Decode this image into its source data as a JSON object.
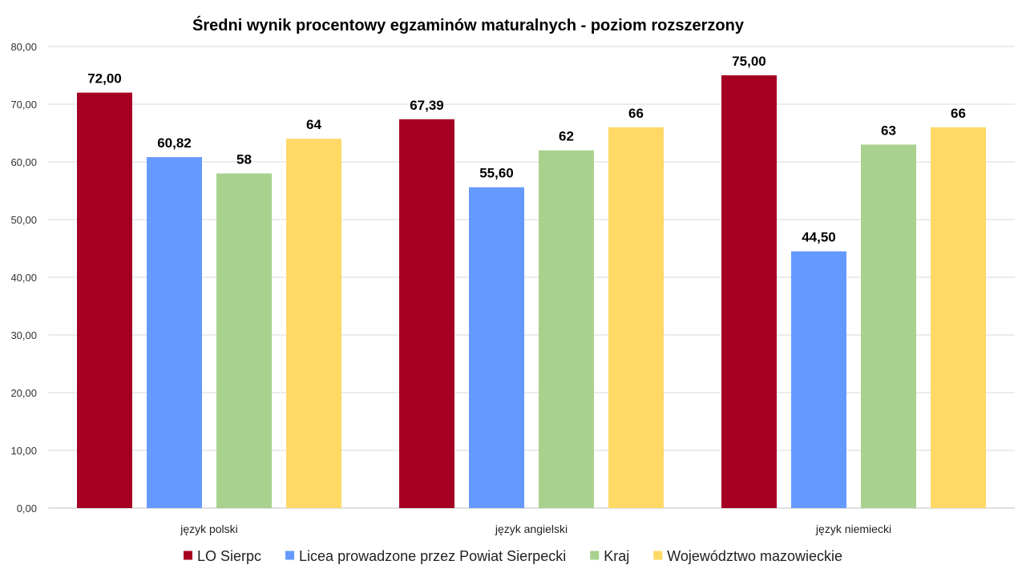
{
  "chart_data": {
    "type": "bar",
    "title": "Średni wynik procentowy egzaminów maturalnych - poziom rozszerzony",
    "xlabel": "",
    "ylabel": "",
    "ylim": [
      0,
      80
    ],
    "y_ticks": [
      0,
      10,
      20,
      30,
      40,
      50,
      60,
      70,
      80
    ],
    "y_tick_labels": [
      "0,00",
      "10,00",
      "20,00",
      "30,00",
      "40,00",
      "50,00",
      "60,00",
      "70,00",
      "80,00"
    ],
    "grid": true,
    "legend_position": "bottom",
    "categories": [
      "język polski",
      "język angielski",
      "język niemiecki"
    ],
    "series": [
      {
        "name": "LO Sierpc",
        "color": "#A50021",
        "values": [
          72.0,
          67.39,
          75.0
        ],
        "labels": [
          "72,00",
          "67,39",
          "75,00"
        ]
      },
      {
        "name": "Licea prowadzone przez Powiat Sierpecki",
        "color": "#6699FF",
        "values": [
          60.82,
          55.6,
          44.5
        ],
        "labels": [
          "60,82",
          "55,60",
          "44,50"
        ]
      },
      {
        "name": "Kraj",
        "color": "#A9D18E",
        "values": [
          58,
          62,
          63
        ],
        "labels": [
          "58",
          "62",
          "63"
        ]
      },
      {
        "name": "Województwo mazowieckie",
        "color": "#FFD966",
        "values": [
          64,
          66,
          66
        ],
        "labels": [
          "64",
          "66",
          "66"
        ]
      }
    ]
  }
}
